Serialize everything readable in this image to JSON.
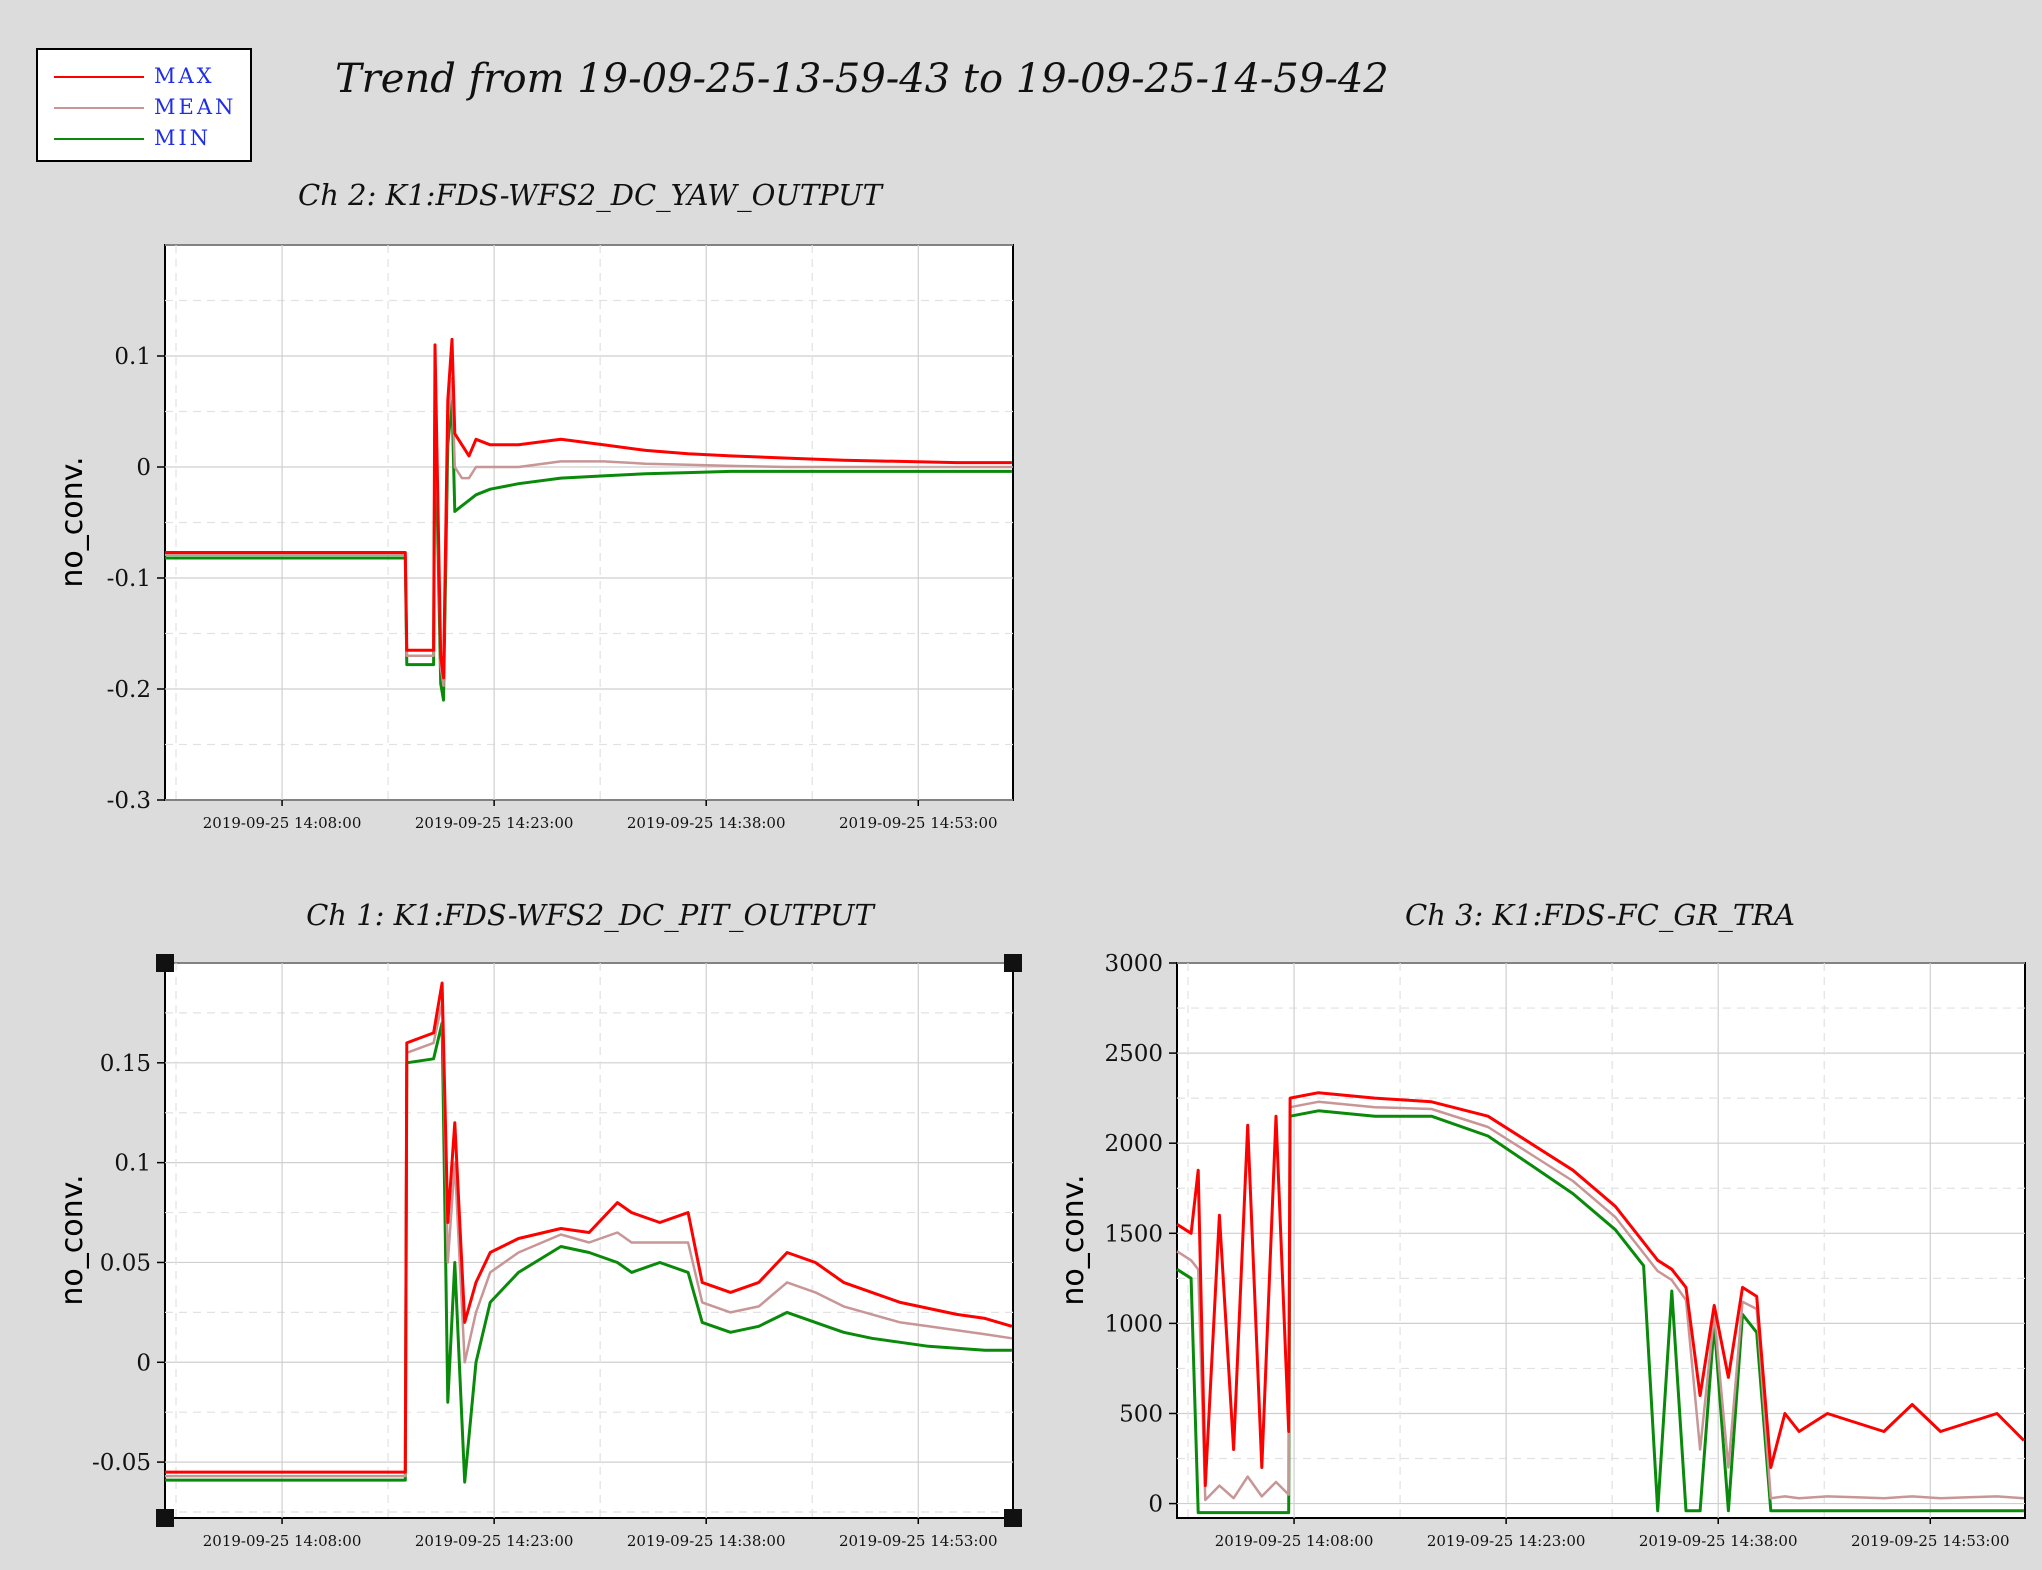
{
  "title": "Trend from 19-09-25-13-59-43 to 19-09-25-14-59-42",
  "legend": [
    {
      "label": "MAX",
      "color": "#ff0000"
    },
    {
      "label": "MEAN",
      "color": "#c89696"
    },
    {
      "label": "MIN",
      "color": "#0a8a0a"
    }
  ],
  "chart_data": [
    {
      "type": "line",
      "title": "Ch 2: K1:FDS-WFS2_DC_YAW_OUTPUT",
      "ylabel": "no_conv.",
      "xlabel": "",
      "x_range": [
        "2019-09-25 13:59:43",
        "2019-09-25 14:59:42"
      ],
      "ylim": [
        -0.3,
        0.2
      ],
      "yticks": [
        -0.3,
        -0.2,
        -0.1,
        0,
        0.1
      ],
      "ytick_labels": [
        "-0.3",
        "-0.2",
        "-0.1",
        "0",
        "0.1"
      ],
      "xtick_labels": [
        "2019-09-25 14:08:00",
        "2019-09-25 14:23:00",
        "2019-09-25 14:38:00",
        "2019-09-25 14:53:00"
      ],
      "xticks_min": [
        8.28,
        23.28,
        38.28,
        53.28
      ],
      "grid": true,
      "series": [
        {
          "name": "MAX",
          "x_min": [
            0,
            17,
            17.1,
            19,
            19.1,
            19.5,
            19.7,
            20,
            20.3,
            20.5,
            21,
            21.5,
            22,
            23,
            25,
            28,
            31,
            34,
            37,
            40,
            44,
            48,
            52,
            56,
            59.9
          ],
          "y": [
            -0.077,
            -0.077,
            -0.165,
            -0.165,
            0.11,
            -0.17,
            -0.19,
            0.06,
            0.115,
            0.03,
            0.02,
            0.01,
            0.025,
            0.02,
            0.02,
            0.025,
            0.02,
            0.015,
            0.012,
            0.01,
            0.008,
            0.006,
            0.005,
            0.004,
            0.004
          ]
        },
        {
          "name": "MEAN",
          "x_min": [
            0,
            17,
            17.1,
            19,
            19.1,
            19.5,
            19.7,
            20,
            20.3,
            20.5,
            21,
            21.5,
            22,
            23,
            25,
            28,
            31,
            34,
            37,
            40,
            44,
            48,
            52,
            56,
            59.9
          ],
          "y": [
            -0.079,
            -0.079,
            -0.17,
            -0.17,
            0.08,
            -0.18,
            -0.197,
            0.04,
            0.08,
            0.0,
            -0.01,
            -0.01,
            0.0,
            0.0,
            0.0,
            0.005,
            0.005,
            0.003,
            0.002,
            0.001,
            0.0,
            0.0,
            0.0,
            0.0,
            0.0
          ]
        },
        {
          "name": "MIN",
          "x_min": [
            0,
            17,
            17.1,
            19,
            19.1,
            19.5,
            19.7,
            20,
            20.3,
            20.5,
            21,
            21.5,
            22,
            23,
            25,
            28,
            31,
            34,
            37,
            40,
            44,
            48,
            52,
            56,
            59.9
          ],
          "y": [
            -0.082,
            -0.082,
            -0.178,
            -0.178,
            0.06,
            -0.195,
            -0.21,
            0.02,
            0.06,
            -0.04,
            -0.035,
            -0.03,
            -0.025,
            -0.02,
            -0.015,
            -0.01,
            -0.008,
            -0.006,
            -0.005,
            -0.004,
            -0.004,
            -0.004,
            -0.004,
            -0.004,
            -0.004
          ]
        }
      ]
    },
    {
      "type": "line",
      "title": "Ch 1: K1:FDS-WFS2_DC_PIT_OUTPUT",
      "ylabel": "no_conv.",
      "xlabel": "",
      "x_range": [
        "2019-09-25 13:59:43",
        "2019-09-25 14:59:42"
      ],
      "ylim": [
        -0.078,
        0.2
      ],
      "yticks": [
        -0.05,
        0,
        0.05,
        0.1,
        0.15
      ],
      "ytick_labels": [
        "-0.05",
        "0",
        "0.05",
        "0.1",
        "0.15"
      ],
      "xtick_labels": [
        "2019-09-25 14:08:00",
        "2019-09-25 14:23:00",
        "2019-09-25 14:38:00",
        "2019-09-25 14:53:00"
      ],
      "xticks_min": [
        8.28,
        23.28,
        38.28,
        53.28
      ],
      "grid": true,
      "series": [
        {
          "name": "MAX",
          "x_min": [
            0,
            17,
            17.1,
            19,
            19.6,
            20,
            20.5,
            21.2,
            22,
            23,
            25,
            28,
            30,
            32,
            33,
            35,
            37,
            38,
            40,
            42,
            44,
            46,
            48,
            50,
            52,
            54,
            56,
            58,
            59.9
          ],
          "y": [
            -0.055,
            -0.055,
            0.16,
            0.165,
            0.19,
            0.07,
            0.12,
            0.02,
            0.04,
            0.055,
            0.062,
            0.067,
            0.065,
            0.08,
            0.075,
            0.07,
            0.075,
            0.04,
            0.035,
            0.04,
            0.055,
            0.05,
            0.04,
            0.035,
            0.03,
            0.027,
            0.024,
            0.022,
            0.018
          ]
        },
        {
          "name": "MEAN",
          "x_min": [
            0,
            17,
            17.1,
            19,
            19.6,
            20,
            20.5,
            21.2,
            22,
            23,
            25,
            28,
            30,
            32,
            33,
            35,
            37,
            38,
            40,
            42,
            44,
            46,
            48,
            50,
            52,
            54,
            56,
            58,
            59.9
          ],
          "y": [
            -0.057,
            -0.057,
            0.155,
            0.16,
            0.18,
            0.05,
            0.1,
            0.0,
            0.025,
            0.045,
            0.055,
            0.064,
            0.06,
            0.065,
            0.06,
            0.06,
            0.06,
            0.03,
            0.025,
            0.028,
            0.04,
            0.035,
            0.028,
            0.024,
            0.02,
            0.018,
            0.016,
            0.014,
            0.012
          ]
        },
        {
          "name": "MIN",
          "x_min": [
            0,
            17,
            17.1,
            19,
            19.6,
            20,
            20.5,
            21.2,
            22,
            23,
            25,
            28,
            30,
            32,
            33,
            35,
            37,
            38,
            40,
            42,
            44,
            46,
            48,
            50,
            52,
            54,
            56,
            58,
            59.9
          ],
          "y": [
            -0.059,
            -0.059,
            0.15,
            0.152,
            0.17,
            -0.02,
            0.05,
            -0.06,
            0.0,
            0.03,
            0.045,
            0.058,
            0.055,
            0.05,
            0.045,
            0.05,
            0.045,
            0.02,
            0.015,
            0.018,
            0.025,
            0.02,
            0.015,
            0.012,
            0.01,
            0.008,
            0.007,
            0.006,
            0.006
          ]
        }
      ]
    },
    {
      "type": "line",
      "title": "Ch 3: K1:FDS-FC_GR_TRA",
      "ylabel": "no_conv.",
      "xlabel": "",
      "x_range": [
        "2019-09-25 13:59:43",
        "2019-09-25 14:59:42"
      ],
      "ylim": [
        -80,
        3000
      ],
      "yticks": [
        0,
        500,
        1000,
        1500,
        2000,
        2500,
        3000
      ],
      "ytick_labels": [
        "0",
        "500",
        "1000",
        "1500",
        "2000",
        "2500",
        "3000"
      ],
      "xtick_labels": [
        "2019-09-25 14:08:00",
        "2019-09-25 14:23:00",
        "2019-09-25 14:38:00",
        "2019-09-25 14:53:00"
      ],
      "xticks_min": [
        8.28,
        23.28,
        38.28,
        53.28
      ],
      "grid": true,
      "series": [
        {
          "name": "MAX",
          "x_min": [
            0,
            1,
            1.5,
            2,
            3,
            4,
            5,
            6,
            7,
            7.9,
            8,
            10,
            14,
            18,
            22,
            25,
            28,
            31,
            33,
            34,
            35,
            36,
            37,
            38,
            39,
            40,
            41,
            42,
            43,
            44,
            46,
            48,
            50,
            52,
            54,
            56,
            58,
            59.9
          ],
          "y": [
            1550,
            1500,
            1850,
            100,
            1600,
            300,
            2100,
            200,
            2150,
            400,
            2250,
            2280,
            2250,
            2230,
            2150,
            2000,
            1850,
            1650,
            1450,
            1350,
            1300,
            1200,
            600,
            1100,
            700,
            1200,
            1150,
            200,
            500,
            400,
            500,
            450,
            400,
            550,
            400,
            450,
            500,
            350
          ]
        },
        {
          "name": "MEAN",
          "x_min": [
            0,
            1,
            1.5,
            2,
            3,
            4,
            5,
            6,
            7,
            7.9,
            8,
            10,
            14,
            18,
            22,
            25,
            28,
            31,
            33,
            34,
            35,
            36,
            37,
            38,
            39,
            40,
            41,
            42,
            43,
            44,
            46,
            48,
            50,
            52,
            54,
            56,
            58,
            59.9
          ],
          "y": [
            1400,
            1350,
            1300,
            20,
            100,
            30,
            150,
            40,
            120,
            50,
            2200,
            2230,
            2200,
            2190,
            2090,
            1940,
            1790,
            1590,
            1390,
            1290,
            1240,
            1130,
            300,
            1050,
            200,
            1120,
            1080,
            30,
            40,
            30,
            40,
            35,
            30,
            40,
            30,
            35,
            40,
            30
          ]
        },
        {
          "name": "MIN",
          "x_min": [
            0,
            1,
            1.5,
            2,
            3,
            4,
            5,
            6,
            7,
            7.9,
            8,
            10,
            14,
            18,
            22,
            25,
            28,
            31,
            33,
            34,
            35,
            36,
            37,
            38,
            39,
            40,
            41,
            42,
            43,
            44,
            46,
            48,
            50,
            52,
            54,
            56,
            58,
            59.9
          ],
          "y": [
            1300,
            1250,
            -50,
            -50,
            -50,
            -50,
            -50,
            -50,
            -50,
            -50,
            2150,
            2180,
            2150,
            2150,
            2040,
            1880,
            1720,
            1520,
            1320,
            -40,
            1180,
            -40,
            -40,
            1000,
            -40,
            1050,
            950,
            -40,
            -40,
            -40,
            -40,
            -40,
            -40,
            -40,
            -40,
            -40,
            -40,
            -40
          ]
        }
      ]
    }
  ]
}
